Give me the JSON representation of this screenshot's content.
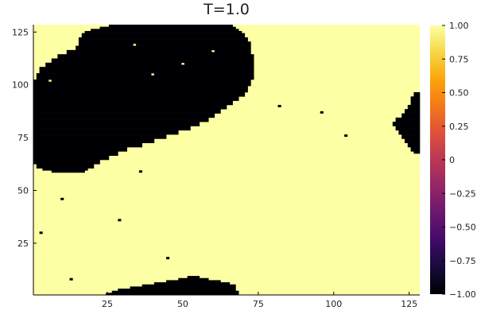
{
  "chart_data": {
    "type": "heatmap",
    "title": "T=1.0",
    "xlim": [
      0.5,
      128.5
    ],
    "ylim": [
      0.5,
      128.5
    ],
    "x_ticks": [
      25,
      50,
      75,
      100,
      125
    ],
    "y_ticks": [
      25,
      50,
      75,
      100,
      125
    ],
    "x_tick_labels": [
      "25",
      "50",
      "75",
      "100",
      "125"
    ],
    "y_tick_labels": [
      "25",
      "50",
      "75",
      "100",
      "125"
    ],
    "colorbar": {
      "colormap": "inferno",
      "range": [
        -1.0,
        1.0
      ],
      "ticks": [
        -1.0,
        -0.75,
        -0.5,
        -0.25,
        0,
        0.25,
        0.5,
        0.75,
        1.0
      ],
      "tick_labels": [
        "−1.00",
        "−0.75",
        "−0.50",
        "−0.25",
        "0",
        "0.25",
        "0.50",
        "0.75",
        "1.00"
      ]
    },
    "values_note": "Ising spin lattice 128x128, values in {-1, +1}; default +1, regions below are -1",
    "default_value": 1,
    "minus_regions": [
      {
        "name": "top-left domain",
        "rows": [
          [
            128,
            26,
            66
          ],
          [
            127,
            23,
            67
          ],
          [
            126,
            20,
            68
          ],
          [
            125,
            18,
            69
          ],
          [
            124,
            17,
            70
          ],
          [
            122,
            16,
            71
          ],
          [
            120,
            16,
            72
          ],
          [
            118,
            15,
            72
          ],
          [
            116,
            12,
            72
          ],
          [
            114,
            9,
            73
          ],
          [
            112,
            7,
            73
          ],
          [
            110,
            5,
            73
          ],
          [
            108,
            3,
            73
          ],
          [
            105,
            2,
            73
          ],
          [
            102,
            1,
            72
          ],
          [
            99,
            1,
            71
          ],
          [
            96,
            1,
            70
          ],
          [
            94,
            1,
            68
          ],
          [
            92,
            1,
            66
          ],
          [
            90,
            1,
            64
          ],
          [
            88,
            1,
            62
          ],
          [
            86,
            1,
            60
          ],
          [
            84,
            1,
            58
          ],
          [
            82,
            1,
            55
          ],
          [
            80,
            1,
            52
          ],
          [
            78,
            1,
            48
          ],
          [
            76,
            1,
            44
          ],
          [
            74,
            1,
            40
          ],
          [
            72,
            1,
            36
          ],
          [
            70,
            1,
            31
          ],
          [
            68,
            1,
            28
          ],
          [
            66,
            1,
            25
          ],
          [
            64,
            1,
            22
          ],
          [
            62,
            2,
            20
          ],
          [
            60,
            4,
            18
          ],
          [
            59,
            7,
            17
          ]
        ]
      },
      {
        "name": "bottom domain",
        "rows": [
          [
            1,
            25,
            68
          ],
          [
            2,
            27,
            68
          ],
          [
            3,
            29,
            67
          ],
          [
            4,
            33,
            67
          ],
          [
            5,
            37,
            67
          ],
          [
            6,
            41,
            65
          ],
          [
            7,
            45,
            62
          ],
          [
            8,
            49,
            58
          ],
          [
            9,
            52,
            55
          ]
        ]
      },
      {
        "name": "right-edge domain",
        "rows": [
          [
            96,
            127,
            128
          ],
          [
            94,
            126,
            128
          ],
          [
            92,
            126,
            128
          ],
          [
            90,
            125,
            128
          ],
          [
            88,
            124,
            128
          ],
          [
            86,
            123,
            128
          ],
          [
            84,
            121,
            128
          ],
          [
            82,
            120,
            128
          ],
          [
            80,
            121,
            128
          ],
          [
            78,
            122,
            128
          ],
          [
            76,
            123,
            128
          ],
          [
            74,
            124,
            128
          ],
          [
            72,
            125,
            128
          ],
          [
            70,
            126,
            128
          ],
          [
            68,
            127,
            128
          ]
        ]
      }
    ],
    "minus_pixels": [
      [
        13,
        8
      ],
      [
        3,
        30
      ],
      [
        10,
        46
      ],
      [
        29,
        36
      ],
      [
        36,
        59
      ],
      [
        45,
        18
      ],
      [
        82,
        90
      ],
      [
        96,
        87
      ],
      [
        104,
        76
      ],
      [
        40,
        117
      ],
      [
        59,
        117
      ]
    ],
    "plus_pixels": [
      [
        6,
        102
      ],
      [
        34,
        119
      ],
      [
        60,
        116
      ],
      [
        50,
        110
      ],
      [
        40,
        105
      ]
    ]
  }
}
